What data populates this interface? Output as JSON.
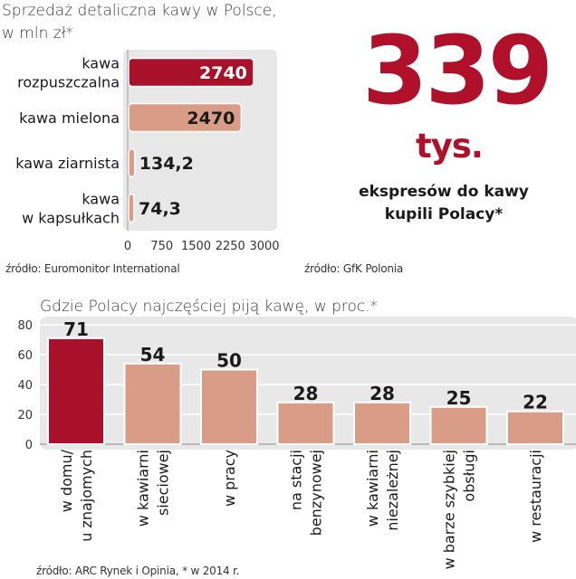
{
  "headline": {
    "value": "339",
    "unit": "tys.",
    "caption_line1": "ekspresów do kawy",
    "caption_line2": "kupili Polacy*"
  },
  "sources": {
    "top_left": "źródło: Euromonitor International",
    "top_right": "źródło: GfK Polonia",
    "bottom": "źródło: ARC Rynek i Opinia, * w 2014 r."
  },
  "colors": {
    "highlight": "#a9102a",
    "bar": "#d99c87",
    "panel": "#e8e8e8",
    "headline": "#b0102a"
  },
  "chart_data": [
    {
      "type": "bar",
      "orientation": "horizontal",
      "title_line1": "Sprzedaż detaliczna kawy w Polsce,",
      "title_line2": "w mln zł*",
      "categories": [
        [
          "kawa",
          "rozpuszczalna"
        ],
        [
          "kawa mielona"
        ],
        [
          "kawa ziarnista"
        ],
        [
          "kawa",
          "w kapsułkach"
        ]
      ],
      "values": [
        2740,
        2470,
        134.2,
        74.3
      ],
      "value_labels": [
        "2740",
        "2470",
        "134,2",
        "74,3"
      ],
      "highlight_index": 0,
      "xlim": [
        0,
        3000
      ],
      "xticks": [
        0,
        750,
        1500,
        2250,
        3000
      ],
      "xtick_labels": [
        "0",
        "750",
        "1500",
        "2250",
        "3000"
      ]
    },
    {
      "type": "bar",
      "orientation": "vertical",
      "title": "Gdzie Polacy najczęściej piją kawę, w proc.*",
      "categories": [
        [
          "w domu/",
          "u znajomych"
        ],
        [
          "w kawiarni",
          "sieciowej"
        ],
        [
          "w pracy"
        ],
        [
          "na stacji",
          "benzynowej"
        ],
        [
          "w kawiarni",
          "niezależnej"
        ],
        [
          "w barze szybkiej",
          "obsługi"
        ],
        [
          "w restauracji"
        ]
      ],
      "values": [
        71,
        54,
        50,
        28,
        28,
        25,
        22
      ],
      "value_labels": [
        "71",
        "54",
        "50",
        "28",
        "28",
        "25",
        "22"
      ],
      "highlight_index": 0,
      "ylim": [
        0,
        80
      ],
      "yticks": [
        0,
        20,
        40,
        60,
        80
      ],
      "ytick_labels": [
        "0",
        "20",
        "40",
        "60",
        "80"
      ]
    }
  ]
}
